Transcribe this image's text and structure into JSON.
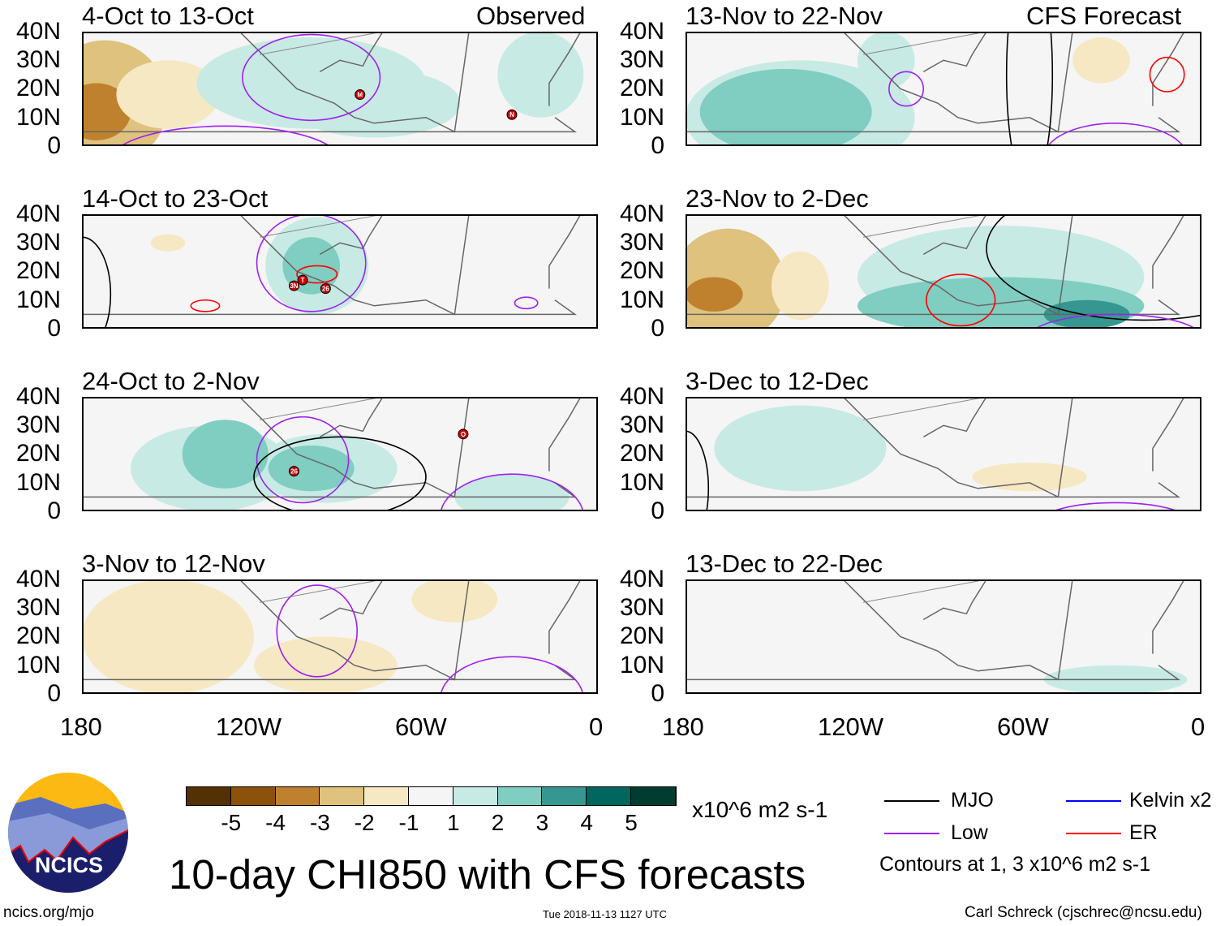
{
  "header": {
    "left_label": "Observed",
    "right_label": "CFS Forecast"
  },
  "lat_ticks": [
    "40N",
    "30N",
    "20N",
    "10N",
    "0"
  ],
  "lon_ticks": [
    "180",
    "120W",
    "60W",
    "0"
  ],
  "panels": [
    {
      "title": "4-Oct to 13-Oct",
      "column": "observed",
      "storms": [
        {
          "label": "M",
          "lon": -83,
          "lat": 18
        },
        {
          "label": "N",
          "lon": -30,
          "lat": 11
        }
      ]
    },
    {
      "title": "14-Oct to 23-Oct",
      "column": "observed",
      "storms": [
        {
          "label": "T",
          "lon": -103,
          "lat": 17
        },
        {
          "label": "3N",
          "lon": -106,
          "lat": 15
        },
        {
          "label": "26",
          "lon": -95,
          "lat": 14
        }
      ]
    },
    {
      "title": "24-Oct to 2-Nov",
      "column": "observed",
      "storms": [
        {
          "label": "26",
          "lon": -106,
          "lat": 14
        },
        {
          "label": "O",
          "lon": -47,
          "lat": 27
        }
      ]
    },
    {
      "title": "3-Nov to 12-Nov",
      "column": "observed",
      "storms": []
    },
    {
      "title": "13-Nov to 22-Nov",
      "column": "forecast",
      "storms": []
    },
    {
      "title": "23-Nov to 2-Dec",
      "column": "forecast",
      "storms": []
    },
    {
      "title": "3-Dec to 12-Dec",
      "column": "forecast",
      "storms": []
    },
    {
      "title": "13-Dec to 22-Dec",
      "column": "forecast",
      "storms": []
    }
  ],
  "colorbar": {
    "colors": [
      "#543005",
      "#8c510a",
      "#bf812d",
      "#dfc27d",
      "#f6e8c3",
      "#f5f5f5",
      "#c7eae5",
      "#80cdc1",
      "#35978f",
      "#01665e",
      "#003c30"
    ],
    "labels": [
      "-5",
      "-4",
      "-3",
      "-2",
      "-1",
      "1",
      "2",
      "3",
      "4",
      "5"
    ],
    "units": "x10^6 m2 s-1"
  },
  "legend": {
    "items": [
      {
        "label": "MJO",
        "color": "#000000"
      },
      {
        "label": "Kelvin x2",
        "color": "#0000ff"
      },
      {
        "label": "Low",
        "color": "#a020f0"
      },
      {
        "label": "ER",
        "color": "#ff0000"
      }
    ],
    "contours_note": "Contours at 1, 3 x10^6 m2 s-1"
  },
  "logo": {
    "text": "NCICS"
  },
  "title": "10-day CHI850 with CFS forecasts",
  "footer": {
    "url": "ncics.org/mjo",
    "timestamp": "Tue 2018-11-13 1127 UTC",
    "author": "Carl Schreck (cjschrec@ncsu.edu)"
  }
}
